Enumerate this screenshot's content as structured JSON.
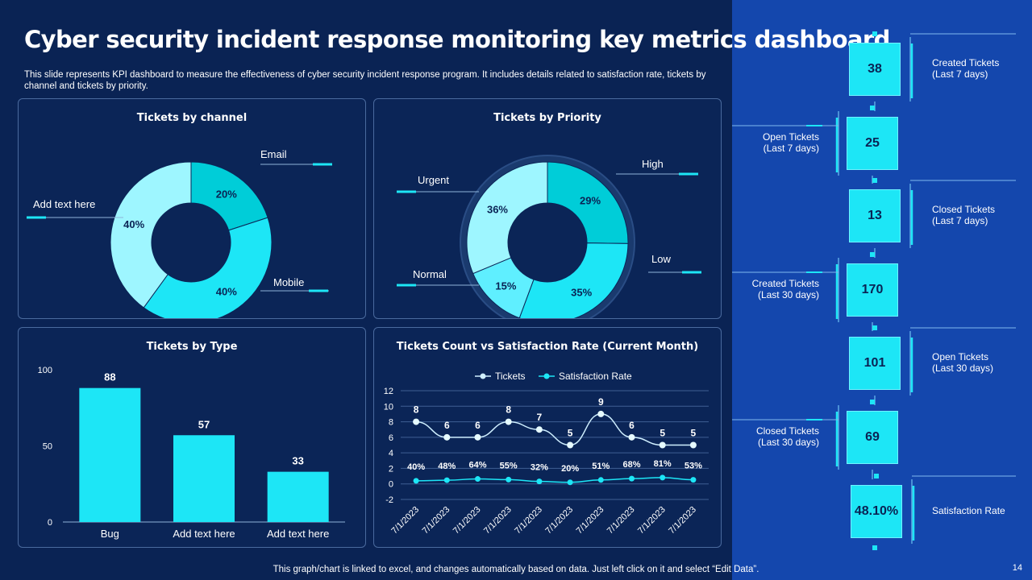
{
  "title": "Cyber security incident response monitoring key metrics dashboard",
  "subtitle": "This slide represents KPI dashboard to measure the effectiveness of cyber security incident response program. It includes details related to satisfaction rate, tickets by channel and tickets by priority.",
  "footer": "This graph/chart is linked to excel, and changes automatically based on data. Just left click on it and select “Edit Data”.",
  "page_number": "14",
  "colors": {
    "background": "#0a2354",
    "side_panel": "#1447ad",
    "accent": "#1de6f6",
    "accent_dark": "#00cdd8",
    "accent_light": "#9ef6ff"
  },
  "kpis": [
    {
      "value": "38",
      "label_line1": "Created Tickets",
      "label_line2": "(Last 7 days)"
    },
    {
      "value": "25",
      "label_line1": "Open Tickets",
      "label_line2": "(Last 7 days)"
    },
    {
      "value": "13",
      "label_line1": "Closed Tickets",
      "label_line2": "(Last 7 days)"
    },
    {
      "value": "170",
      "label_line1": "Created Tickets",
      "label_line2": "(Last 30 days)"
    },
    {
      "value": "101",
      "label_line1": "Open Tickets",
      "label_line2": "(Last 30 days)"
    },
    {
      "value": "69",
      "label_line1": "Closed Tickets",
      "label_line2": "(Last 30 days)"
    },
    {
      "value": "48.10%",
      "label_line1": "Satisfaction Rate",
      "label_line2": ""
    }
  ],
  "chart_data": [
    {
      "type": "pie",
      "title": "Tickets by channel",
      "slices": [
        {
          "name": "Email",
          "value": 20,
          "label": "20%",
          "color": "#00cdd8"
        },
        {
          "name": "Mobile",
          "value": 40,
          "label": "40%",
          "color": "#1de6f6"
        },
        {
          "name": "Add text here",
          "value": 40,
          "label": "40%",
          "color": "#9ef6ff"
        }
      ]
    },
    {
      "type": "pie",
      "title": "Tickets by Priority",
      "slices": [
        {
          "name": "High",
          "value": 29,
          "label": "29%",
          "color": "#00cdd8"
        },
        {
          "name": "Low",
          "value": 35,
          "label": "35%",
          "color": "#1de6f6"
        },
        {
          "name": "Normal",
          "value": 15,
          "label": "15%",
          "color": "#5fefff"
        },
        {
          "name": "Urgent",
          "value": 36,
          "label": "36%",
          "color": "#9ef6ff"
        }
      ]
    },
    {
      "type": "bar",
      "title": "Tickets by Type",
      "categories": [
        "Bug",
        "Add text here",
        "Add text here"
      ],
      "values": [
        88,
        57,
        33
      ],
      "ylim": [
        0,
        100
      ],
      "yticks": [
        "0",
        "50",
        "100"
      ]
    },
    {
      "type": "line",
      "title": "Tickets Count vs Satisfaction Rate (Current Month)",
      "categories": [
        "7/1/2023",
        "7/1/2023",
        "7/1/2023",
        "7/1/2023",
        "7/1/2023",
        "7/1/2023",
        "7/1/2023",
        "7/1/2023",
        "7/1/2023",
        "7/1/2023"
      ],
      "ylim": [
        -2,
        12
      ],
      "yticks": [
        "-2",
        "0",
        "2",
        "4",
        "6",
        "8",
        "10",
        "12"
      ],
      "legend": "top",
      "series": [
        {
          "name": "Tickets",
          "values": [
            8,
            6,
            6,
            8,
            7,
            5,
            9,
            6,
            5,
            5
          ],
          "labels": [
            "8",
            "6",
            "6",
            "8",
            "7",
            "5",
            "9",
            "6",
            "5",
            "5"
          ]
        },
        {
          "name": "Satisfaction Rate",
          "values": [
            0.4,
            0.48,
            0.64,
            0.55,
            0.32,
            0.2,
            0.51,
            0.68,
            0.81,
            0.53
          ],
          "labels": [
            "40%",
            "48%",
            "64%",
            "55%",
            "32%",
            "20%",
            "51%",
            "68%",
            "81%",
            "53%"
          ]
        }
      ]
    }
  ]
}
